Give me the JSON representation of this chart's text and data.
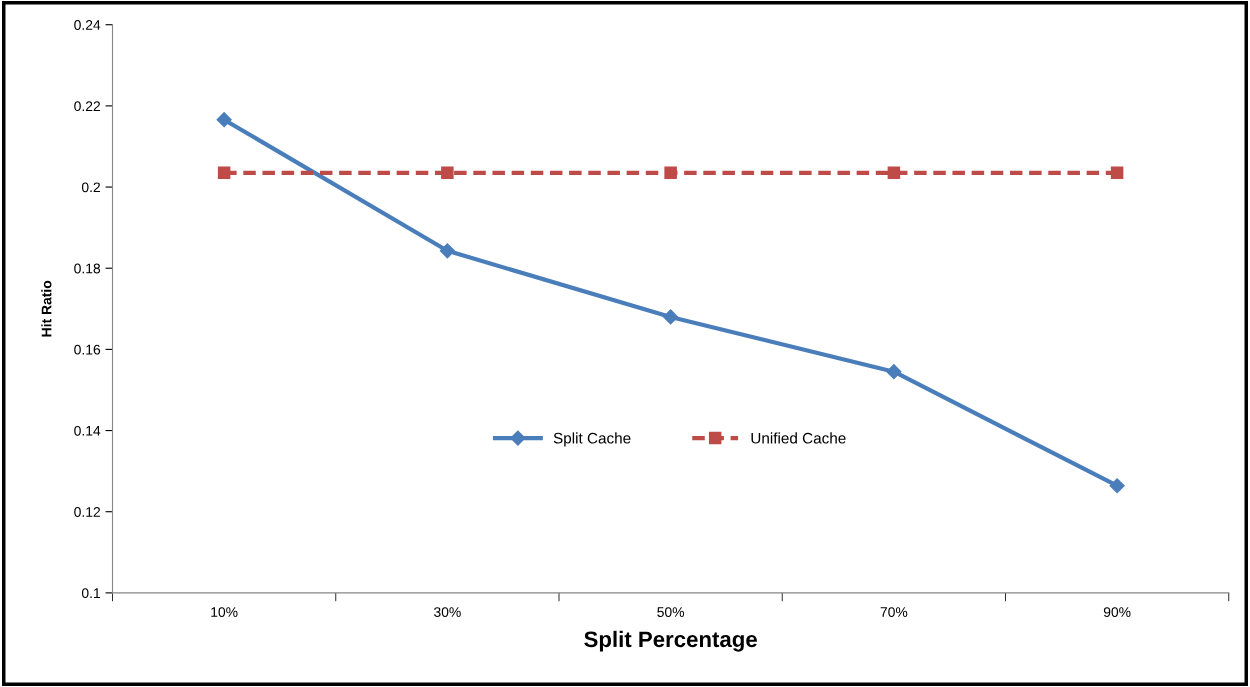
{
  "chart_data": {
    "type": "line",
    "xlabel": "Split Percentage",
    "ylabel": "Hit Ratio",
    "categories": [
      "10%",
      "30%",
      "50%",
      "70%",
      "90%"
    ],
    "series": [
      {
        "name": "Split Cache",
        "color": "#4a7ebb",
        "marker": "diamond",
        "line_style": "solid",
        "values": [
          0.2166,
          0.1843,
          0.168,
          0.1545,
          0.1264
        ]
      },
      {
        "name": "Unified Cache",
        "color": "#be4b48",
        "marker": "square",
        "line_style": "dashed",
        "values": [
          0.2035,
          0.2035,
          0.2035,
          0.2035,
          0.2035
        ]
      }
    ],
    "ylim": [
      0.1,
      0.24
    ],
    "yticks": [
      0.1,
      0.12,
      0.14,
      0.16,
      0.18,
      0.2,
      0.22,
      0.24
    ],
    "grid": false,
    "legend": "center"
  }
}
